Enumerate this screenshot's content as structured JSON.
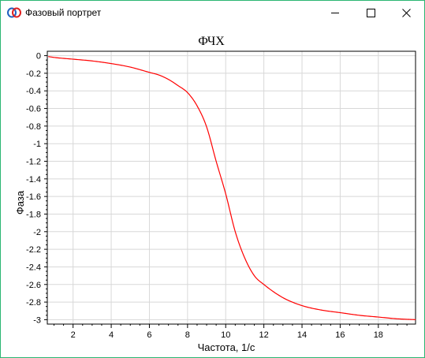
{
  "window": {
    "title": "Фазовый портрет",
    "app_icon": "phase-portrait-app-icon",
    "controls": {
      "minimize": "minimize-icon",
      "maximize": "maximize-icon",
      "close": "close-icon"
    }
  },
  "colors": {
    "border": "#2bb673",
    "curve": "#ff0000",
    "grid": "#d8d8d8"
  },
  "chart_data": {
    "type": "line",
    "title": "ФЧХ",
    "xlabel": "Частота, 1/с",
    "ylabel": "Фаза",
    "xlim": [
      0.65,
      19.95
    ],
    "ylim": [
      -3.05,
      0.05
    ],
    "x_ticks": [
      2,
      4,
      6,
      8,
      10,
      12,
      14,
      16,
      18
    ],
    "x_tick_labels": [
      "2",
      "4",
      "6",
      "8",
      "10",
      "12",
      "14",
      "16",
      "18"
    ],
    "y_ticks": [
      0,
      -0.2,
      -0.4,
      -0.6,
      -0.8,
      -1,
      -1.2,
      -1.4,
      -1.6,
      -1.8,
      -2,
      -2.2,
      -2.4,
      -2.6,
      -2.8,
      -3
    ],
    "y_tick_labels": [
      "0",
      "-0.2",
      "-0.4",
      "-0.6",
      "-0.8",
      "-1",
      "-1.2",
      "-1.4",
      "-1.6",
      "-1.8",
      "-2",
      "-2.2",
      "-2.4",
      "-2.6",
      "-2.8",
      "-3"
    ],
    "grid": true,
    "series": [
      {
        "x": [
          0.7,
          1,
          2,
          3,
          4,
          5,
          6,
          6.5,
          7,
          7.5,
          8,
          8.5,
          9,
          9.5,
          10,
          10.5,
          11,
          11.5,
          12,
          13,
          14,
          15,
          16,
          17,
          18,
          19,
          20
        ],
        "y": [
          -0.01,
          -0.02,
          -0.04,
          -0.06,
          -0.09,
          -0.13,
          -0.19,
          -0.22,
          -0.27,
          -0.34,
          -0.42,
          -0.57,
          -0.81,
          -1.2,
          -1.57,
          -2.0,
          -2.3,
          -2.5,
          -2.6,
          -2.75,
          -2.84,
          -2.89,
          -2.92,
          -2.95,
          -2.97,
          -2.99,
          -3.0
        ]
      }
    ]
  }
}
